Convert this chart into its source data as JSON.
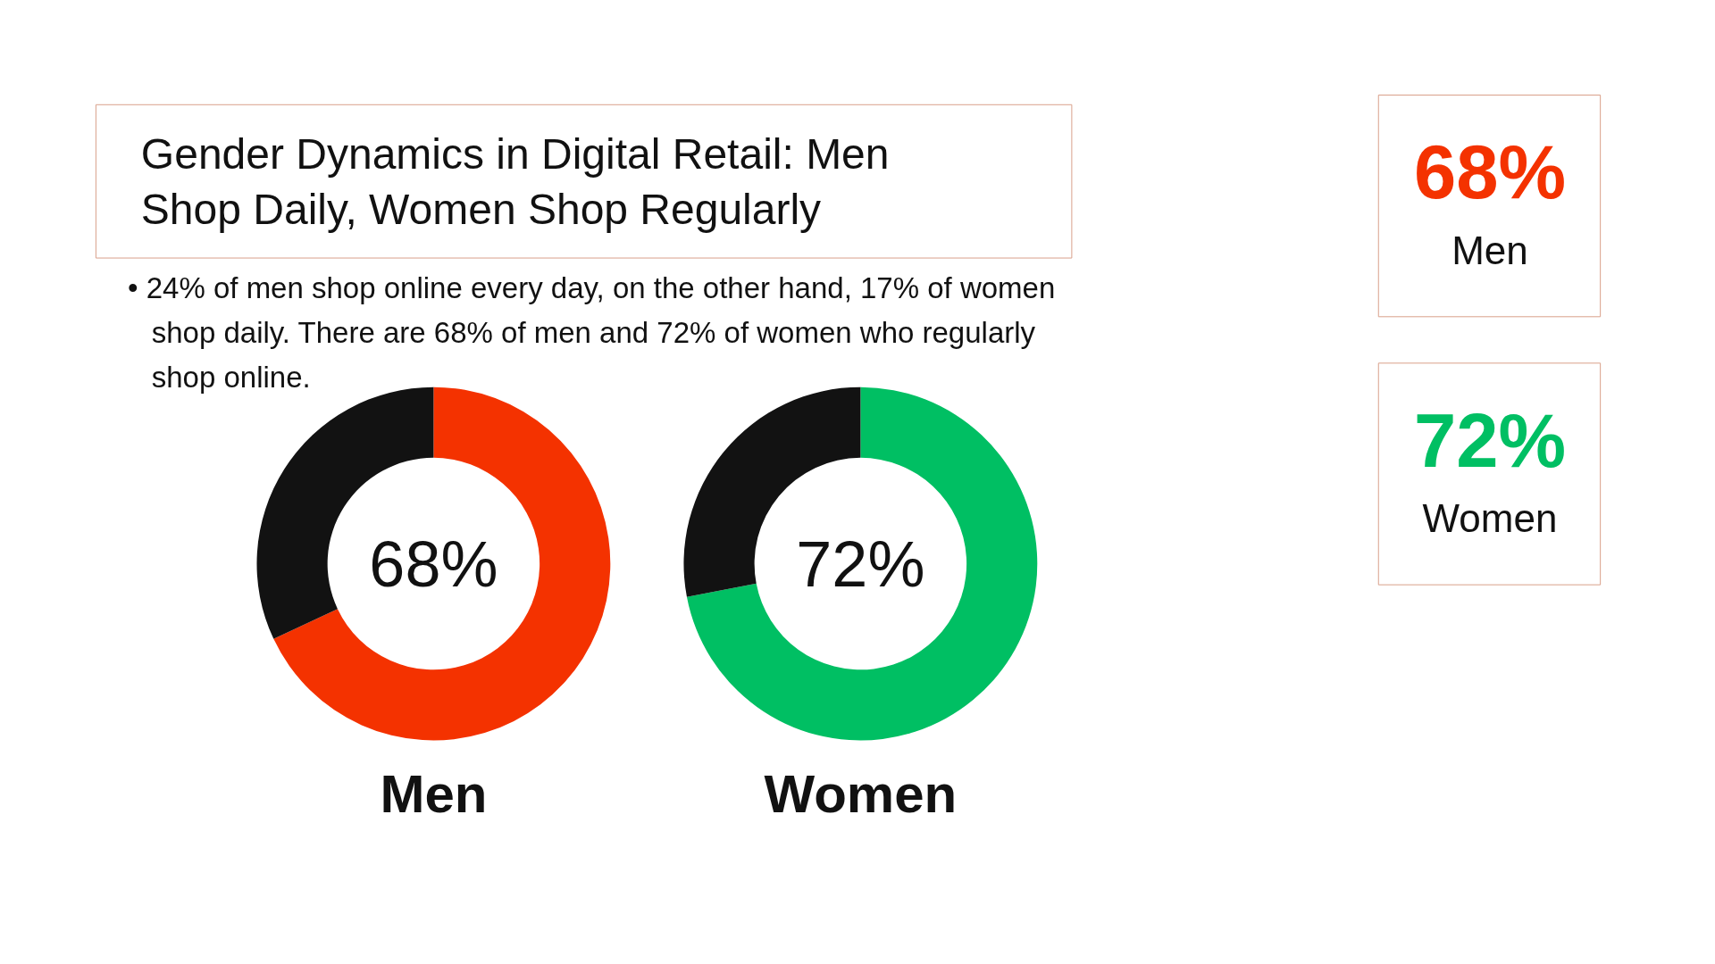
{
  "chart_data": [
    {
      "type": "donut",
      "title": "Gender Dynamics in Digital Retail: Men Shop Daily, Women Shop Regularly",
      "subtitle": "• 24% of men shop online every day, on the other hand, 17% of women shop daily. There are 68% of men and 72% of women who regularly shop online.",
      "categories": [
        null,
        null
      ],
      "values": [
        68,
        32
      ],
      "colors": [
        "#f43200",
        "#121212"
      ],
      "annotations": [
        "68%"
      ],
      "xlabel": "Men"
    },
    {
      "type": "donut",
      "categories": [
        null,
        null
      ],
      "values": [
        72,
        28
      ],
      "colors": [
        "#00bf63",
        "#121212"
      ],
      "annotations": [
        "72%"
      ],
      "xlabel": "Women"
    },
    {
      "type": "other",
      "annotations": [
        "68%",
        "Men",
        "72%",
        "Women"
      ],
      "colors": [
        "#f43200",
        "#111111",
        "#00bf63",
        "#111111"
      ]
    }
  ]
}
